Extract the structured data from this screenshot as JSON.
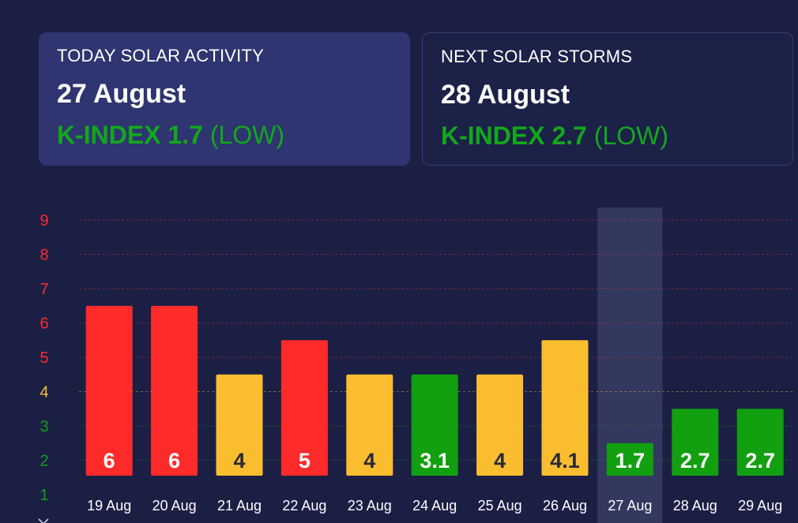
{
  "cards": {
    "today": {
      "heading": "TODAY SOLAR ACTIVITY",
      "date": "27 August",
      "kindex_label": "K-INDEX",
      "kindex_value": "1.7",
      "level": "(LOW)"
    },
    "next": {
      "heading": "NEXT SOLAR STORMS",
      "date": "28 August",
      "kindex_label": "K-INDEX",
      "kindex_value": "2.7",
      "level": "(LOW)"
    }
  },
  "colors": {
    "high": "#ff2a2a",
    "moderate": "#fbbd30",
    "low": "#12a011",
    "background": "#1b1f44",
    "card_active": "#2e3570",
    "highlight": "#33385f"
  },
  "chart_data": {
    "type": "bar",
    "categories": [
      "19 Aug",
      "20 Aug",
      "21 Aug",
      "22 Aug",
      "23 Aug",
      "24 Aug",
      "25 Aug",
      "26 Aug",
      "27 Aug",
      "28 Aug",
      "29 Aug"
    ],
    "values": [
      6,
      6,
      4,
      5,
      4,
      3.1,
      4,
      4.1,
      1.7,
      2.7,
      2.7
    ],
    "value_labels": [
      "6",
      "6",
      "4",
      "5",
      "4",
      "3.1",
      "4",
      "4.1",
      "1.7",
      "2.7",
      "2.7"
    ],
    "level": [
      "high",
      "high",
      "moderate",
      "high",
      "moderate",
      "low",
      "moderate",
      "moderate",
      "low",
      "low",
      "low"
    ],
    "y_ticks": [
      "1",
      "2",
      "3",
      "4",
      "5",
      "6",
      "7",
      "8",
      "9"
    ],
    "ylim": [
      1,
      9
    ],
    "highlighted_category": "27 Aug",
    "grid": true
  }
}
